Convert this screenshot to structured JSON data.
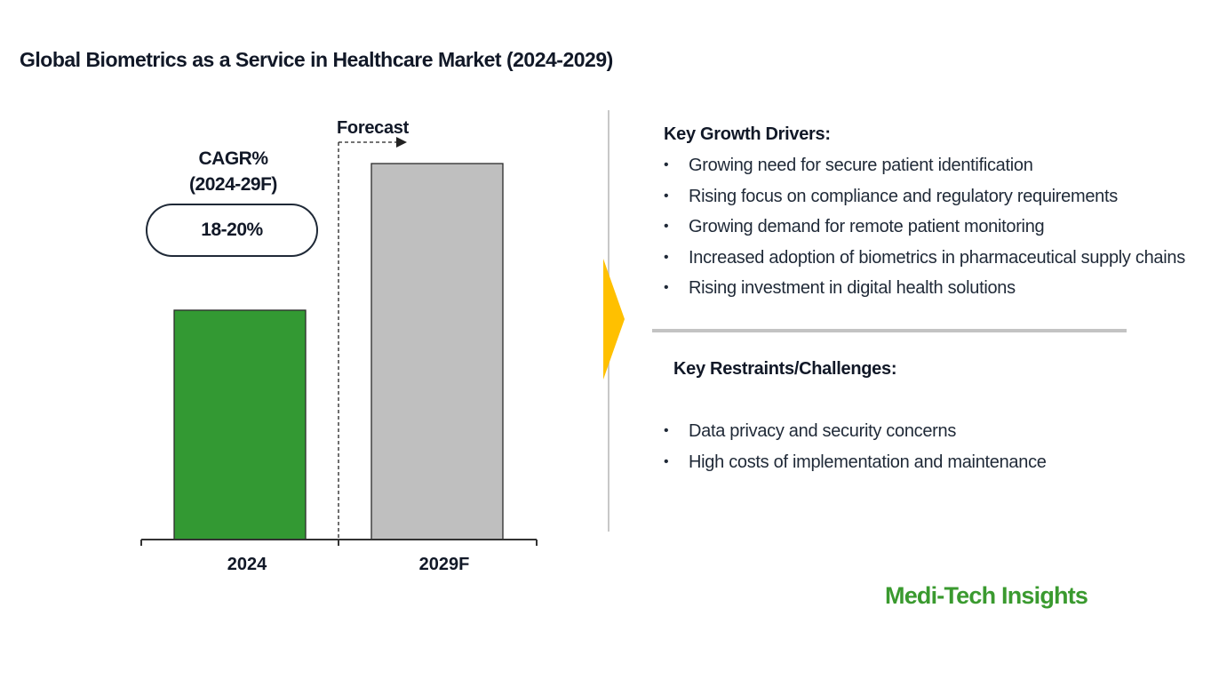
{
  "title": "Global Biometrics as a Service in Healthcare Market (2024-2029)",
  "chart_data": {
    "type": "bar",
    "categories": [
      "2024",
      "2029F"
    ],
    "values": [
      61,
      100
    ],
    "ylim": [
      0,
      100
    ],
    "colors": [
      "#339933",
      "#bfbfbf"
    ],
    "forecast_label": "Forecast",
    "cagr": {
      "label_line1": "CAGR%",
      "label_line2": "(2024-29F)",
      "value": "18-20%"
    }
  },
  "drivers": {
    "heading": "Key Growth Drivers:",
    "items": [
      "Growing need for secure patient identification",
      "Rising focus on compliance and regulatory requirements",
      "Growing demand for remote patient monitoring",
      "Increased adoption of biometrics in pharmaceutical supply chains",
      "Rising investment in digital health solutions"
    ]
  },
  "restraints": {
    "heading": "Key Restraints/Challenges:",
    "items": [
      "Data privacy and security concerns",
      "High costs of implementation and maintenance"
    ]
  },
  "bullet_symbol": "•",
  "brand": "Medi-Tech Insights",
  "colors": {
    "accent_green": "#339933",
    "chevron_yellow": "#ffc000",
    "brand_green": "#3a9a2f"
  }
}
